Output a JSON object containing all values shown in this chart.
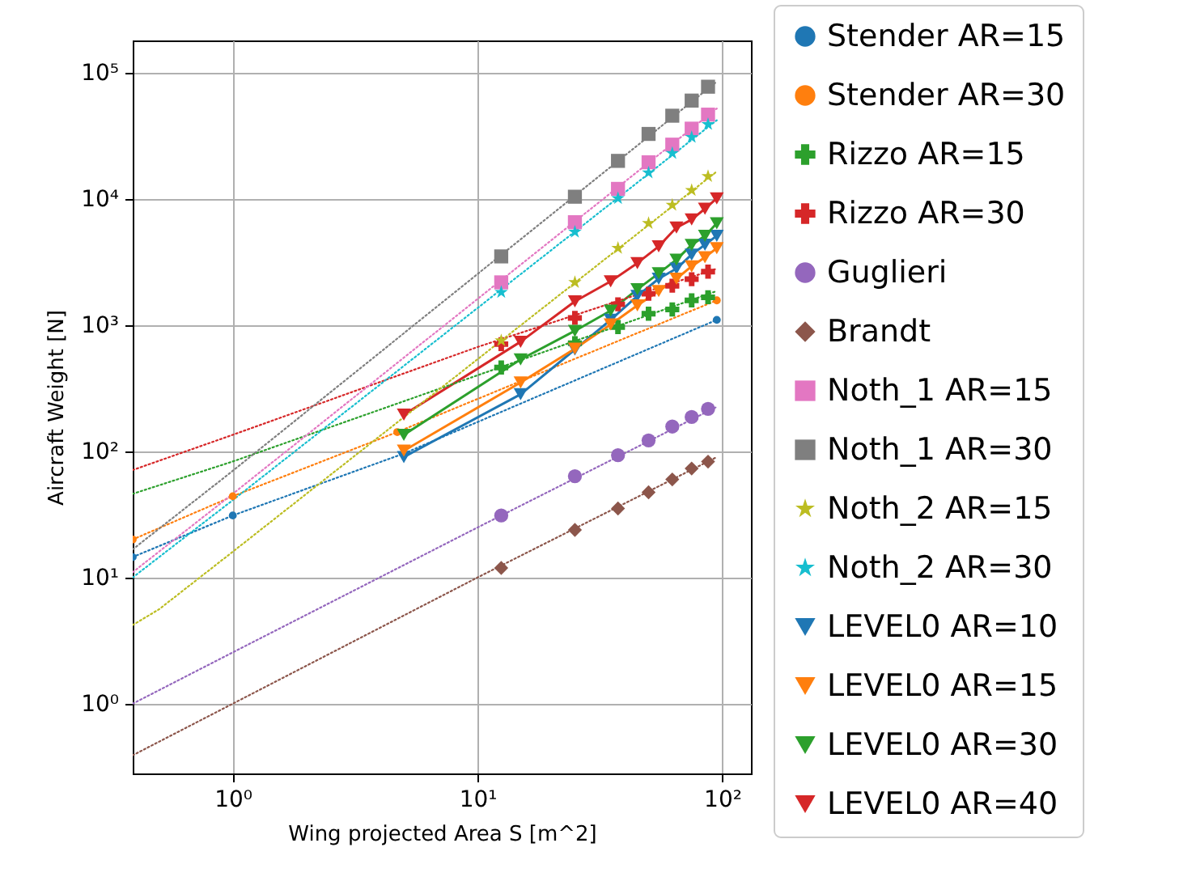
{
  "chart_data": {
    "type": "line",
    "xlabel": "Wing projected Area S [m^2]",
    "ylabel": "Aircraft Weight [N]",
    "log": "xy",
    "grid": true,
    "legend": "right",
    "xlim": [
      0.39,
      131
    ],
    "ylim": [
      0.28,
      180000
    ],
    "xticks": [
      {
        "value": 1,
        "label": "10⁰"
      },
      {
        "value": 10,
        "label": "10¹"
      },
      {
        "value": 100,
        "label": "10²"
      }
    ],
    "yticks": [
      {
        "value": 1,
        "label": "10⁰"
      },
      {
        "value": 10,
        "label": "10¹"
      },
      {
        "value": 100,
        "label": "10²"
      },
      {
        "value": 1000,
        "label": "10³"
      },
      {
        "value": 10000,
        "label": "10⁴"
      },
      {
        "value": 100000,
        "label": "10⁵"
      }
    ],
    "series": [
      {
        "name": "Stender AR=15",
        "color": "#1f77b4",
        "type": "line",
        "line_style": "dotted",
        "marker": "circle",
        "x": [
          0.39,
          1,
          5,
          95
        ],
        "values": [
          14.5,
          31,
          96,
          1100
        ]
      },
      {
        "name": "Stender AR=30",
        "color": "#ff7f0e",
        "type": "line",
        "line_style": "dotted",
        "marker": "circle",
        "x": [
          0.39,
          1,
          4.7,
          95
        ],
        "values": [
          20,
          44,
          142,
          1570
        ]
      },
      {
        "name": "Rizzo AR=15",
        "color": "#2ca02c",
        "type": "scatter",
        "marker": "cross",
        "x": [
          12.5,
          25,
          37.5,
          50,
          62.5,
          75,
          87.5
        ],
        "values": [
          461,
          718,
          964,
          1230,
          1330,
          1570,
          1660
        ]
      },
      {
        "name": "Rizzo AR=30",
        "color": "#d62728",
        "type": "scatter",
        "marker": "cross",
        "x": [
          12.5,
          25,
          37.5,
          50,
          62.5,
          75,
          87.5
        ],
        "values": [
          706,
          1140,
          1460,
          1770,
          2050,
          2310,
          2650
        ]
      },
      {
        "name": "Guglieri",
        "color": "#9467bd",
        "type": "scatter",
        "marker": "circle",
        "x": [
          12.5,
          25,
          37.5,
          50,
          62.5,
          75,
          87.5
        ],
        "values": [
          31,
          63.5,
          93,
          122,
          157,
          187,
          217
        ]
      },
      {
        "name": "Brandt",
        "color": "#8c564b",
        "type": "scatter",
        "marker": "diamond",
        "x": [
          12.5,
          25,
          37.5,
          50,
          62.5,
          75,
          87.5
        ],
        "values": [
          11.9,
          23.8,
          35.2,
          47.3,
          59.8,
          73,
          82.8
        ]
      },
      {
        "name": "Noth_1 AR=15",
        "color": "#e377c2",
        "type": "scatter",
        "marker": "square",
        "x": [
          12.5,
          25,
          37.5,
          50,
          62.5,
          75,
          87.5
        ],
        "values": [
          2180,
          6530,
          12000,
          19500,
          26900,
          36000,
          46500
        ]
      },
      {
        "name": "Noth_1 AR=30",
        "color": "#7f7f7f",
        "type": "scatter",
        "marker": "square",
        "x": [
          12.5,
          25,
          37.5,
          50,
          62.5,
          75,
          87.5
        ],
        "values": [
          3500,
          10400,
          20000,
          32700,
          45600,
          60100,
          77400
        ]
      },
      {
        "name": "Noth_2 AR=15",
        "color": "#bcbd22",
        "type": "scatter",
        "marker": "star",
        "x": [
          12.5,
          25,
          37.5,
          50,
          62.5,
          75,
          87.5
        ],
        "values": [
          753,
          2180,
          4070,
          6410,
          8940,
          11700,
          15100
        ]
      },
      {
        "name": "Noth_2 AR=30",
        "color": "#17becf",
        "type": "scatter",
        "marker": "star",
        "x": [
          12.5,
          25,
          37.5,
          50,
          62.5,
          75,
          87.5
        ],
        "values": [
          1820,
          5470,
          10100,
          16100,
          23000,
          30800,
          39000
        ]
      },
      {
        "name": "LEVEL0 AR=10",
        "color": "#1f77b4",
        "type": "line",
        "line_style": "solid",
        "marker": "triangle",
        "x": [
          5,
          15,
          25,
          35,
          45,
          55,
          65,
          75,
          85,
          95
        ],
        "values": [
          90,
          283,
          640,
          1100,
          1700,
          2330,
          2800,
          3620,
          4330,
          5100
        ]
      },
      {
        "name": "LEVEL0 AR=15",
        "color": "#ff7f0e",
        "type": "line",
        "line_style": "solid",
        "marker": "triangle",
        "x": [
          5,
          15,
          25,
          35,
          45,
          55,
          65,
          75,
          85,
          95
        ],
        "values": [
          101,
          351,
          650,
          1010,
          1430,
          1860,
          2330,
          2920,
          3450,
          4070
        ]
      },
      {
        "name": "LEVEL0 AR=30",
        "color": "#2ca02c",
        "type": "line",
        "line_style": "solid",
        "marker": "triangle",
        "x": [
          5,
          15,
          25,
          35,
          45,
          55,
          65,
          75,
          85,
          95
        ],
        "values": [
          135,
          534,
          900,
          1300,
          1920,
          2570,
          3300,
          4320,
          5100,
          6400
        ]
      },
      {
        "name": "LEVEL0 AR=40",
        "color": "#d62728",
        "type": "line",
        "line_style": "solid",
        "marker": "triangle",
        "x": [
          5,
          15,
          25,
          35,
          45,
          55,
          65,
          75,
          85,
          95
        ],
        "values": [
          195,
          738,
          1540,
          2220,
          3100,
          4200,
          5920,
          6860,
          8350,
          10100
        ]
      },
      {
        "color": "#2ca02c",
        "line_style": "dotted",
        "x": [
          0.39,
          1,
          95
        ],
        "values": [
          46,
          83,
          1860
        ]
      },
      {
        "color": "#d62728",
        "type": "line",
        "line_style": "dotted",
        "x": [
          0.39,
          1,
          10,
          95
        ],
        "values": [
          71,
          135,
          670,
          2800
        ]
      },
      {
        "color": "#9467bd",
        "type": "line",
        "line_style": "dotted",
        "x": [
          0.39,
          1,
          10,
          95
        ],
        "values": [
          1.0,
          2.55,
          24.9,
          225
        ]
      },
      {
        "color": "#8c564b",
        "type": "line",
        "line_style": "dotted",
        "x": [
          0.39,
          1,
          10,
          95
        ],
        "values": [
          0.39,
          1,
          10,
          90
        ]
      },
      {
        "color": "#e377c2",
        "type": "line",
        "line_style": "dotted",
        "x": [
          0.39,
          1,
          95
        ],
        "values": [
          11,
          46,
          52000
        ]
      },
      {
        "color": "#7f7f7f",
        "type": "line",
        "line_style": "dotted",
        "x": [
          0.39,
          1,
          95
        ],
        "values": [
          16.7,
          70,
          85000
        ]
      },
      {
        "color": "#bcbd22",
        "type": "line",
        "line_style": "dotted",
        "x": [
          0.39,
          0.5,
          1,
          12.5,
          95
        ],
        "values": [
          4.2,
          5.6,
          16,
          753,
          16500
        ]
      },
      {
        "color": "#17becf",
        "type": "line",
        "line_style": "dotted",
        "x": [
          0.39,
          1,
          95
        ],
        "values": [
          10,
          41,
          42000
        ]
      }
    ]
  }
}
